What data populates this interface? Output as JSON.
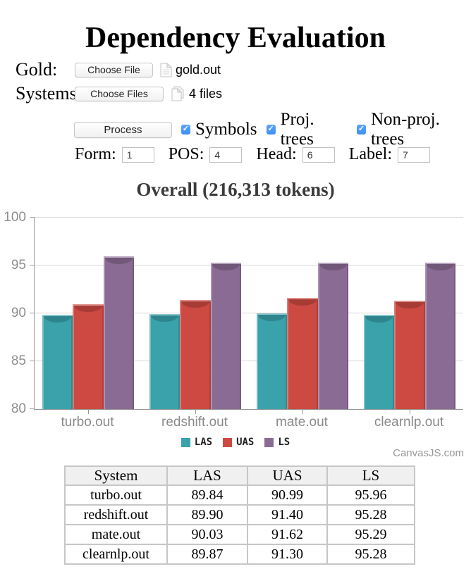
{
  "page": {
    "title": "Dependency Evaluation"
  },
  "form": {
    "gold": {
      "label": "Gold:",
      "button": "Choose File",
      "filename": "gold.out"
    },
    "systems": {
      "label": "Systems:",
      "button": "Choose Files",
      "filename": "4 files"
    },
    "process_button": "Process",
    "checkboxes": [
      {
        "label": "Symbols",
        "checked": true
      },
      {
        "label": "Proj. trees",
        "checked": true
      },
      {
        "label": "Non-proj. trees",
        "checked": true
      }
    ],
    "fields": [
      {
        "label": "Form:",
        "value": "1"
      },
      {
        "label": "POS:",
        "value": "4"
      },
      {
        "label": "Head:",
        "value": "6"
      },
      {
        "label": "Label:",
        "value": "7"
      }
    ]
  },
  "chart_data": {
    "type": "bar",
    "title": "Overall (216,313 tokens)",
    "categories": [
      "turbo.out",
      "redshift.out",
      "mate.out",
      "clearnlp.out"
    ],
    "series": [
      {
        "name": "LAS",
        "color": "#3aa2ab",
        "values": [
          89.84,
          89.9,
          90.03,
          89.87
        ]
      },
      {
        "name": "UAS",
        "color": "#cc4a42",
        "values": [
          90.99,
          91.4,
          91.62,
          91.3
        ]
      },
      {
        "name": "LS",
        "color": "#8a6b94",
        "values": [
          95.96,
          95.28,
          95.29,
          95.28
        ]
      }
    ],
    "ylim": [
      80,
      100
    ],
    "yticks": [
      80,
      85,
      90,
      95,
      100
    ],
    "grid": true,
    "legend_position": "bottom",
    "watermark": "CanvasJS.com"
  },
  "table": {
    "headers": [
      "System",
      "LAS",
      "UAS",
      "LS"
    ],
    "rows": [
      [
        "turbo.out",
        "89.84",
        "90.99",
        "95.96"
      ],
      [
        "redshift.out",
        "89.90",
        "91.40",
        "95.28"
      ],
      [
        "mate.out",
        "90.03",
        "91.62",
        "95.29"
      ],
      [
        "clearnlp.out",
        "89.87",
        "91.30",
        "95.28"
      ]
    ]
  }
}
